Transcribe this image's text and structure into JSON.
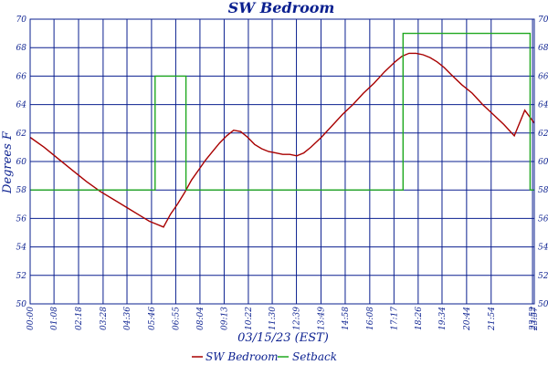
{
  "chart_data": {
    "type": "line",
    "title": "SW Bedroom",
    "ylabel": "Degrees F",
    "xlabel": "03/15/23 (EST)",
    "ylim": [
      50,
      70
    ],
    "xlim": [
      0,
      1437
    ],
    "grid": true,
    "legend_placement": "bottom-center",
    "y_ticks": [
      50,
      52,
      54,
      56,
      58,
      60,
      62,
      64,
      66,
      68,
      70
    ],
    "x_tick_minutes": [
      0,
      68,
      138,
      208,
      276,
      346,
      415,
      484,
      553,
      622,
      690,
      759,
      829,
      898,
      968,
      1037,
      1106,
      1174,
      1244,
      1314,
      1432,
      1437
    ],
    "x_tick_labels": [
      "00:00",
      "01:08",
      "02:18",
      "03:28",
      "04:36",
      "05:46",
      "06:55",
      "08:04",
      "09:13",
      "10:22",
      "11:30",
      "12:39",
      "13:49",
      "14:58",
      "16:08",
      "17:17",
      "18:26",
      "19:34",
      "20:44",
      "21:54",
      "23:52",
      "23:57"
    ],
    "series": [
      {
        "name": "SW Bedroom",
        "color": "#a80000",
        "x": [
          0,
          40,
          80,
          120,
          160,
          200,
          240,
          280,
          320,
          340,
          360,
          380,
          400,
          420,
          440,
          460,
          480,
          500,
          520,
          540,
          560,
          580,
          600,
          620,
          640,
          660,
          680,
          700,
          720,
          740,
          760,
          780,
          800,
          830,
          860,
          890,
          920,
          950,
          980,
          1010,
          1040,
          1060,
          1080,
          1100,
          1120,
          1140,
          1160,
          1180,
          1200,
          1230,
          1260,
          1290,
          1320,
          1350,
          1380,
          1410,
          1437
        ],
        "y": [
          61.7,
          61.0,
          60.2,
          59.4,
          58.6,
          57.9,
          57.3,
          56.7,
          56.1,
          55.8,
          55.6,
          55.4,
          56.3,
          57.0,
          57.8,
          58.7,
          59.4,
          60.1,
          60.7,
          61.3,
          61.8,
          62.2,
          62.1,
          61.7,
          61.2,
          60.9,
          60.7,
          60.6,
          60.5,
          60.5,
          60.4,
          60.6,
          61.0,
          61.7,
          62.5,
          63.3,
          64.0,
          64.8,
          65.5,
          66.3,
          67.0,
          67.4,
          67.6,
          67.6,
          67.5,
          67.3,
          67.0,
          66.6,
          66.1,
          65.4,
          64.8,
          64.0,
          63.3,
          62.6,
          61.8,
          63.6,
          62.7
        ]
      },
      {
        "name": "Setback",
        "color": "#1fa81f",
        "x": [
          0,
          356,
          356,
          444,
          444,
          1063,
          1063,
          1425,
          1425,
          1437
        ],
        "y": [
          58,
          58,
          66,
          66,
          58,
          58,
          69,
          69,
          58,
          58
        ]
      }
    ]
  }
}
